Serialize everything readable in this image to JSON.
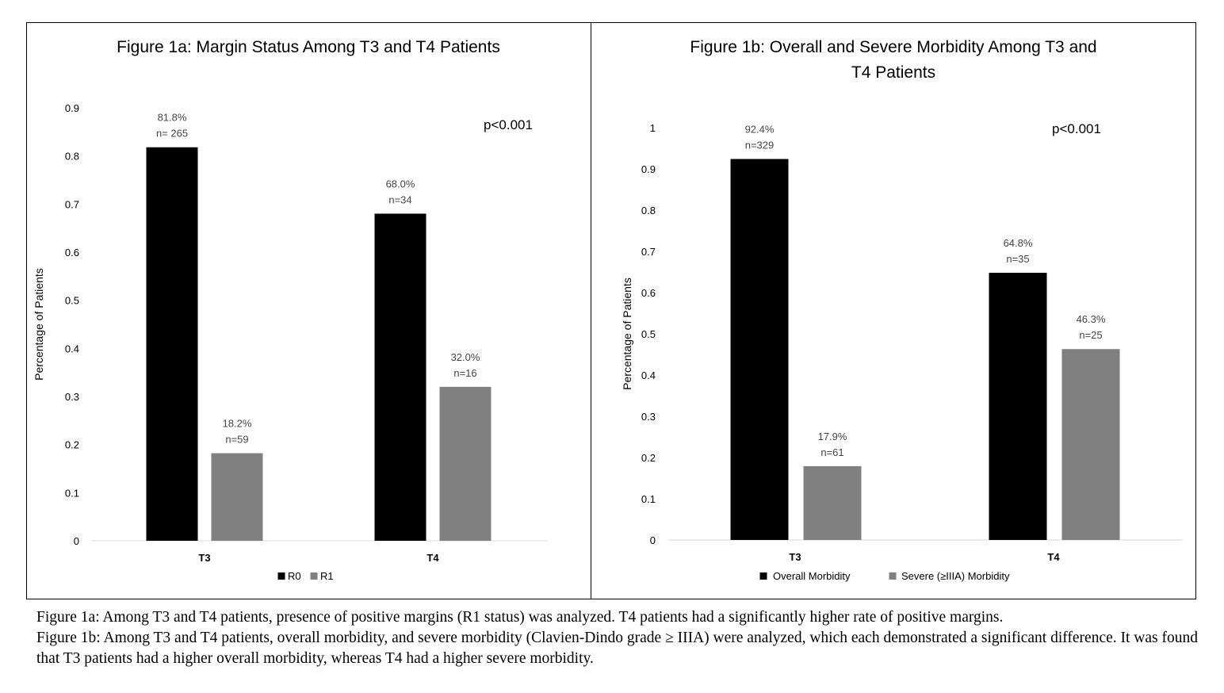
{
  "chart_data": [
    {
      "type": "bar",
      "title": "Figure 1a: Margin Status Among T3 and T4 Patients",
      "ylabel": "Percentage of Patients",
      "xlabel": "",
      "categories": [
        "T3",
        "T4"
      ],
      "ylim": [
        0,
        0.9
      ],
      "yticks": [
        "0",
        "0.1",
        "0.2",
        "0.3",
        "0.4",
        "0.5",
        "0.6",
        "0.7",
        "0.8",
        "0.9"
      ],
      "annotation": "p<0.001",
      "legend_position": "bottom",
      "grid": false,
      "series": [
        {
          "name": "R0",
          "color": "#000000",
          "values": [
            0.818,
            0.68
          ],
          "labels": [
            [
              "81.8%",
              "n= 265"
            ],
            [
              "68.0%",
              "n=34"
            ]
          ]
        },
        {
          "name": "R1",
          "color": "#808080",
          "values": [
            0.182,
            0.32
          ],
          "labels": [
            [
              "18.2%",
              "n=59"
            ],
            [
              "32.0%",
              "n=16"
            ]
          ]
        }
      ]
    },
    {
      "type": "bar",
      "title": "Figure 1b: Overall and Severe Morbidity Among T3 and T4 Patients",
      "title_lines": [
        "Figure 1b: Overall and Severe Morbidity Among T3 and",
        "T4 Patients"
      ],
      "ylabel": "Percentage of Patients",
      "xlabel": "",
      "categories": [
        "T3",
        "T4"
      ],
      "ylim": [
        0,
        1
      ],
      "yticks": [
        "0",
        "0.1",
        "0.2",
        "0.3",
        "0.4",
        "0.5",
        "0.6",
        "0.7",
        "0.8",
        "0.9",
        "1"
      ],
      "annotation": "p<0.001",
      "legend_position": "bottom",
      "grid": false,
      "series": [
        {
          "name": "Overall Morbidity",
          "color": "#000000",
          "values": [
            0.924,
            0.648
          ],
          "labels": [
            [
              "92.4%",
              "n=329"
            ],
            [
              "64.8%",
              "n=35"
            ]
          ]
        },
        {
          "name": "Severe (≥IIIA) Morbidity",
          "color": "#808080",
          "values": [
            0.179,
            0.463
          ],
          "labels": [
            [
              "17.9%",
              "n=61"
            ],
            [
              "46.3%",
              "n=25"
            ]
          ]
        }
      ]
    }
  ],
  "caption": {
    "line1": "Figure 1a: Among T3 and T4 patients, presence of positive margins (R1 status) was analyzed. T4 patients had a significantly higher rate of positive margins.",
    "line2": "Figure 1b: Among T3 and T4 patients, overall morbidity, and severe morbidity (Clavien-Dindo grade ≥ IIIA) were analyzed, which each demonstrated a significant difference. It was found that T3 patients had a higher overall morbidity, whereas T4 had a higher severe morbidity."
  }
}
